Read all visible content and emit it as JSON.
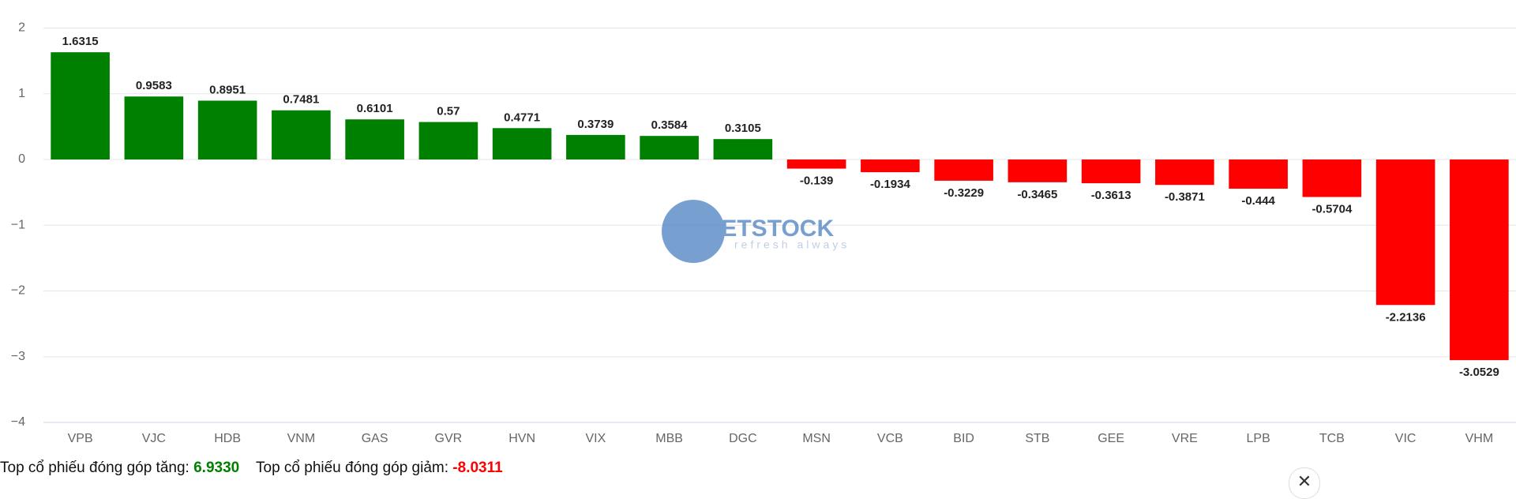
{
  "chart_data": {
    "type": "bar",
    "categories": [
      "VPB",
      "VJC",
      "HDB",
      "VNM",
      "GAS",
      "GVR",
      "HVN",
      "VIX",
      "MBB",
      "DGC",
      "MSN",
      "VCB",
      "BID",
      "STB",
      "GEE",
      "VRE",
      "LPB",
      "TCB",
      "VIC",
      "VHM"
    ],
    "values": [
      1.6315,
      0.9583,
      0.8951,
      0.7481,
      0.6101,
      0.57,
      0.4771,
      0.3739,
      0.3584,
      0.3105,
      -0.139,
      -0.1934,
      -0.3229,
      -0.3465,
      -0.3613,
      -0.3871,
      -0.444,
      -0.5704,
      -2.2136,
      -3.0529
    ],
    "positive_color": "#008000",
    "negative_color": "#ff0000",
    "ylim": [
      -4,
      2
    ],
    "yticks": [
      {
        "value": -4,
        "label": "−4"
      },
      {
        "value": -3,
        "label": "−3"
      },
      {
        "value": -2,
        "label": "−2"
      },
      {
        "value": -1,
        "label": "−1"
      },
      0,
      1,
      2
    ],
    "grid": true
  },
  "watermark": {
    "name": "VIETSTOCK",
    "tagline": "refresh always"
  },
  "footer": {
    "gain_label": "Top cổ phiếu đóng góp tăng:",
    "gain_value": "6.9330",
    "loss_label": "Top cổ phiếu đóng góp giảm:",
    "loss_value": "-8.0311"
  },
  "close_button": "✕"
}
